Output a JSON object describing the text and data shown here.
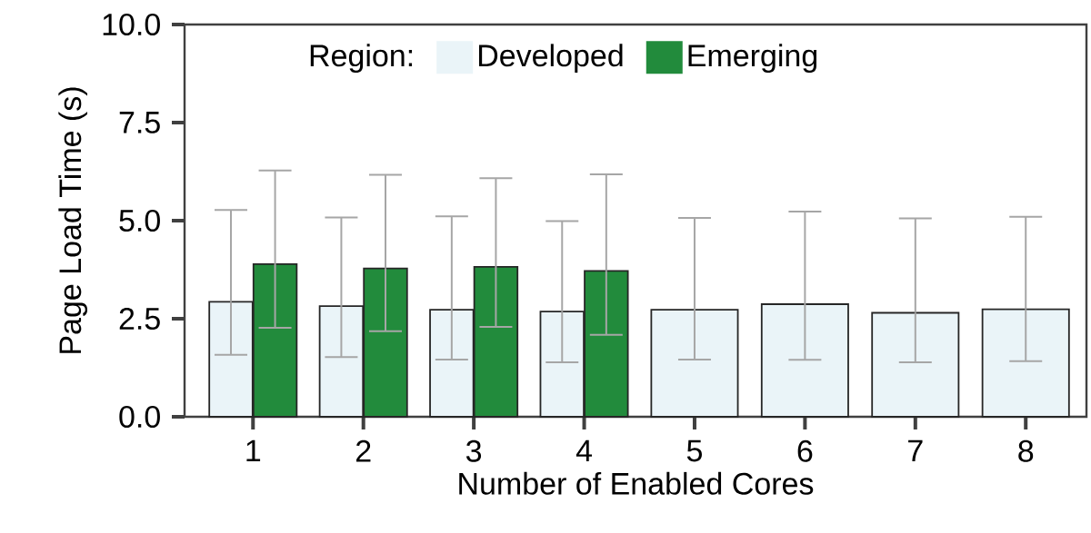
{
  "chart_data": {
    "type": "bar",
    "xlabel": "Number of Enabled Cores",
    "ylabel": "Page Load Time (s)",
    "legend_title": "Region:",
    "legend": "top",
    "categories": [
      "1",
      "2",
      "3",
      "4",
      "5",
      "6",
      "7",
      "8"
    ],
    "ylim": [
      0,
      10
    ],
    "yticks": [
      {
        "value": 0,
        "label": "0.0"
      },
      {
        "value": 2.5,
        "label": "2.5"
      },
      {
        "value": 5,
        "label": "5.0"
      },
      {
        "value": 7.5,
        "label": "7.5"
      },
      {
        "value": 10,
        "label": "10.0"
      }
    ],
    "series": [
      {
        "name": "Developed",
        "color": "#eaf4f8",
        "values": [
          2.93,
          2.82,
          2.73,
          2.68,
          2.73,
          2.87,
          2.65,
          2.74
        ],
        "errors": [
          [
            1.58,
            5.27
          ],
          [
            1.52,
            5.08
          ],
          [
            1.46,
            5.11
          ],
          [
            1.39,
            4.99
          ],
          [
            1.46,
            5.07
          ],
          [
            1.45,
            5.23
          ],
          [
            1.39,
            5.06
          ],
          [
            1.42,
            5.1
          ]
        ]
      },
      {
        "name": "Emerging",
        "color": "#228b3c",
        "values": [
          3.89,
          3.78,
          3.82,
          3.72,
          null,
          null,
          null,
          null
        ],
        "errors": [
          [
            2.27,
            6.28
          ],
          [
            2.18,
            6.17
          ],
          [
            2.29,
            6.08
          ],
          [
            2.09,
            6.18
          ],
          null,
          null,
          null,
          null
        ]
      }
    ]
  }
}
